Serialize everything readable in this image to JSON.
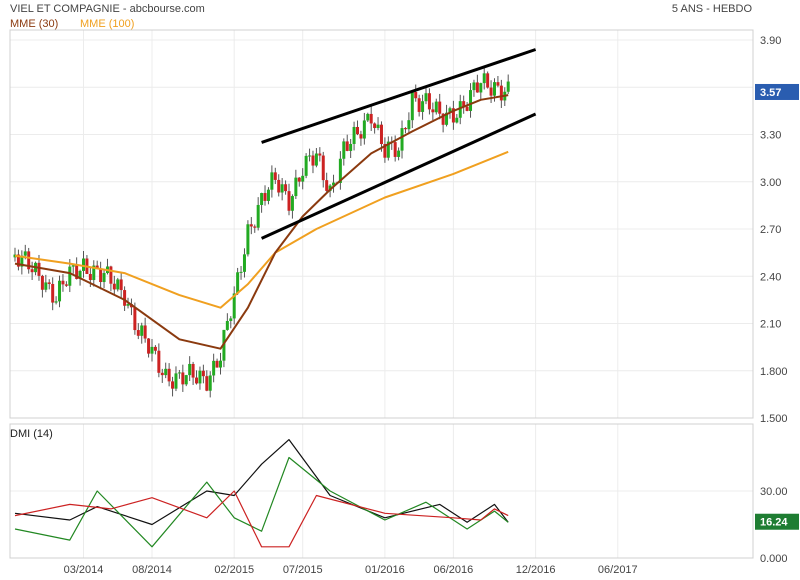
{
  "header": {
    "title": "VIEL ET COMPAGNIE - abcbourse.com",
    "period": "5 ANS - HEBDO"
  },
  "legend": {
    "mme30": "MME (30)",
    "mme100": "MME (100)",
    "mme30_color": "#8b3a0f",
    "mme100_color": "#f0a020",
    "dmi": "DMI (14)"
  },
  "chart_data": [
    {
      "type": "candlestick",
      "title": "VIEL ET COMPAGNIE",
      "x_ticks": [
        "03/2014",
        "08/2014",
        "02/2015",
        "07/2015",
        "01/2016",
        "06/2016",
        "12/2016",
        "06/2017"
      ],
      "y_ticks": [
        "3.90",
        "3.60",
        "3.30",
        "3.00",
        "2.70",
        "2.40",
        "2.10",
        "1.800",
        "1.500"
      ],
      "ylim": [
        1.5,
        4.0
      ],
      "last_price": "3.57",
      "up_color": "#22aa22",
      "down_color": "#cc2222",
      "price_path": [
        [
          "2013-10",
          2.52
        ],
        [
          "2013-12",
          2.4
        ],
        [
          "2014-01",
          2.26
        ],
        [
          "2014-02",
          2.4
        ],
        [
          "2014-03",
          2.48
        ],
        [
          "2014-04",
          2.42
        ],
        [
          "2014-05",
          2.36
        ],
        [
          "2014-06",
          2.3
        ],
        [
          "2014-07",
          2.05
        ],
        [
          "2014-08",
          1.9
        ],
        [
          "2014-09",
          1.78
        ],
        [
          "2014-10",
          1.75
        ],
        [
          "2014-12",
          1.76
        ],
        [
          "2015-01",
          1.9
        ],
        [
          "2015-02",
          2.25
        ],
        [
          "2015-03",
          2.7
        ],
        [
          "2015-04",
          2.88
        ],
        [
          "2015-05",
          3.0
        ],
        [
          "2015-06",
          2.9
        ],
        [
          "2015-07",
          3.08
        ],
        [
          "2015-08",
          3.15
        ],
        [
          "2015-09",
          2.95
        ],
        [
          "2015-10",
          3.2
        ],
        [
          "2015-11",
          3.28
        ],
        [
          "2015-12",
          3.45
        ],
        [
          "2016-01",
          3.2
        ],
        [
          "2016-02",
          3.18
        ],
        [
          "2016-03",
          3.55
        ],
        [
          "2016-04",
          3.5
        ],
        [
          "2016-05",
          3.4
        ],
        [
          "2016-06",
          3.45
        ],
        [
          "2016-07",
          3.5
        ],
        [
          "2016-08",
          3.62
        ],
        [
          "2016-09",
          3.62
        ],
        [
          "2016-10",
          3.57
        ]
      ],
      "mme30": [
        [
          "2013-10",
          2.48
        ],
        [
          "2014-02",
          2.42
        ],
        [
          "2014-06",
          2.25
        ],
        [
          "2014-10",
          2.0
        ],
        [
          "2015-01",
          1.94
        ],
        [
          "2015-03",
          2.2
        ],
        [
          "2015-05",
          2.55
        ],
        [
          "2015-07",
          2.78
        ],
        [
          "2015-09",
          2.95
        ],
        [
          "2015-12",
          3.18
        ],
        [
          "2016-03",
          3.32
        ],
        [
          "2016-06",
          3.45
        ],
        [
          "2016-08",
          3.52
        ],
        [
          "2016-10",
          3.55
        ]
      ],
      "mme100": [
        [
          "2013-10",
          2.53
        ],
        [
          "2014-02",
          2.48
        ],
        [
          "2014-06",
          2.42
        ],
        [
          "2014-10",
          2.28
        ],
        [
          "2015-01",
          2.2
        ],
        [
          "2015-03",
          2.35
        ],
        [
          "2015-05",
          2.55
        ],
        [
          "2015-08",
          2.7
        ],
        [
          "2016-01",
          2.9
        ],
        [
          "2016-06",
          3.05
        ],
        [
          "2016-10",
          3.19
        ]
      ],
      "channel_upper": [
        [
          "2015-04",
          3.25
        ],
        [
          "2016-12",
          3.84
        ]
      ],
      "channel_lower": [
        [
          "2015-04",
          2.64
        ],
        [
          "2016-12",
          3.43
        ]
      ]
    },
    {
      "type": "line",
      "title": "DMI (14)",
      "y_ticks": [
        "30.00",
        "0.000"
      ],
      "ylim": [
        0,
        60
      ],
      "last_value": "16.24",
      "series": [
        {
          "color": "#111111",
          "values": [
            [
              "2013-10",
              20
            ],
            [
              "2014-02",
              17
            ],
            [
              "2014-04",
              23
            ],
            [
              "2014-08",
              15
            ],
            [
              "2014-12",
              30
            ],
            [
              "2015-02",
              28
            ],
            [
              "2015-04",
              42
            ],
            [
              "2015-06",
              53
            ],
            [
              "2015-09",
              28
            ],
            [
              "2016-01",
              18
            ],
            [
              "2016-05",
              24
            ],
            [
              "2016-07",
              16
            ],
            [
              "2016-09",
              24
            ],
            [
              "2016-10",
              16
            ]
          ]
        },
        {
          "color": "#228822",
          "values": [
            [
              "2013-10",
              13
            ],
            [
              "2014-02",
              8
            ],
            [
              "2014-04",
              30
            ],
            [
              "2014-08",
              5
            ],
            [
              "2014-12",
              34
            ],
            [
              "2015-02",
              18
            ],
            [
              "2015-04",
              12
            ],
            [
              "2015-06",
              45
            ],
            [
              "2015-09",
              30
            ],
            [
              "2016-01",
              17
            ],
            [
              "2016-04",
              25
            ],
            [
              "2016-07",
              13
            ],
            [
              "2016-09",
              21
            ],
            [
              "2016-10",
              16
            ]
          ]
        },
        {
          "color": "#cc2222",
          "values": [
            [
              "2013-10",
              19
            ],
            [
              "2014-02",
              24
            ],
            [
              "2014-05",
              22
            ],
            [
              "2014-08",
              27
            ],
            [
              "2014-12",
              18
            ],
            [
              "2015-02",
              30
            ],
            [
              "2015-04",
              5
            ],
            [
              "2015-06",
              5
            ],
            [
              "2015-08",
              28
            ],
            [
              "2016-01",
              20
            ],
            [
              "2016-06",
              18
            ],
            [
              "2016-08",
              17
            ],
            [
              "2016-09",
              22
            ],
            [
              "2016-10",
              19
            ]
          ]
        }
      ]
    }
  ]
}
